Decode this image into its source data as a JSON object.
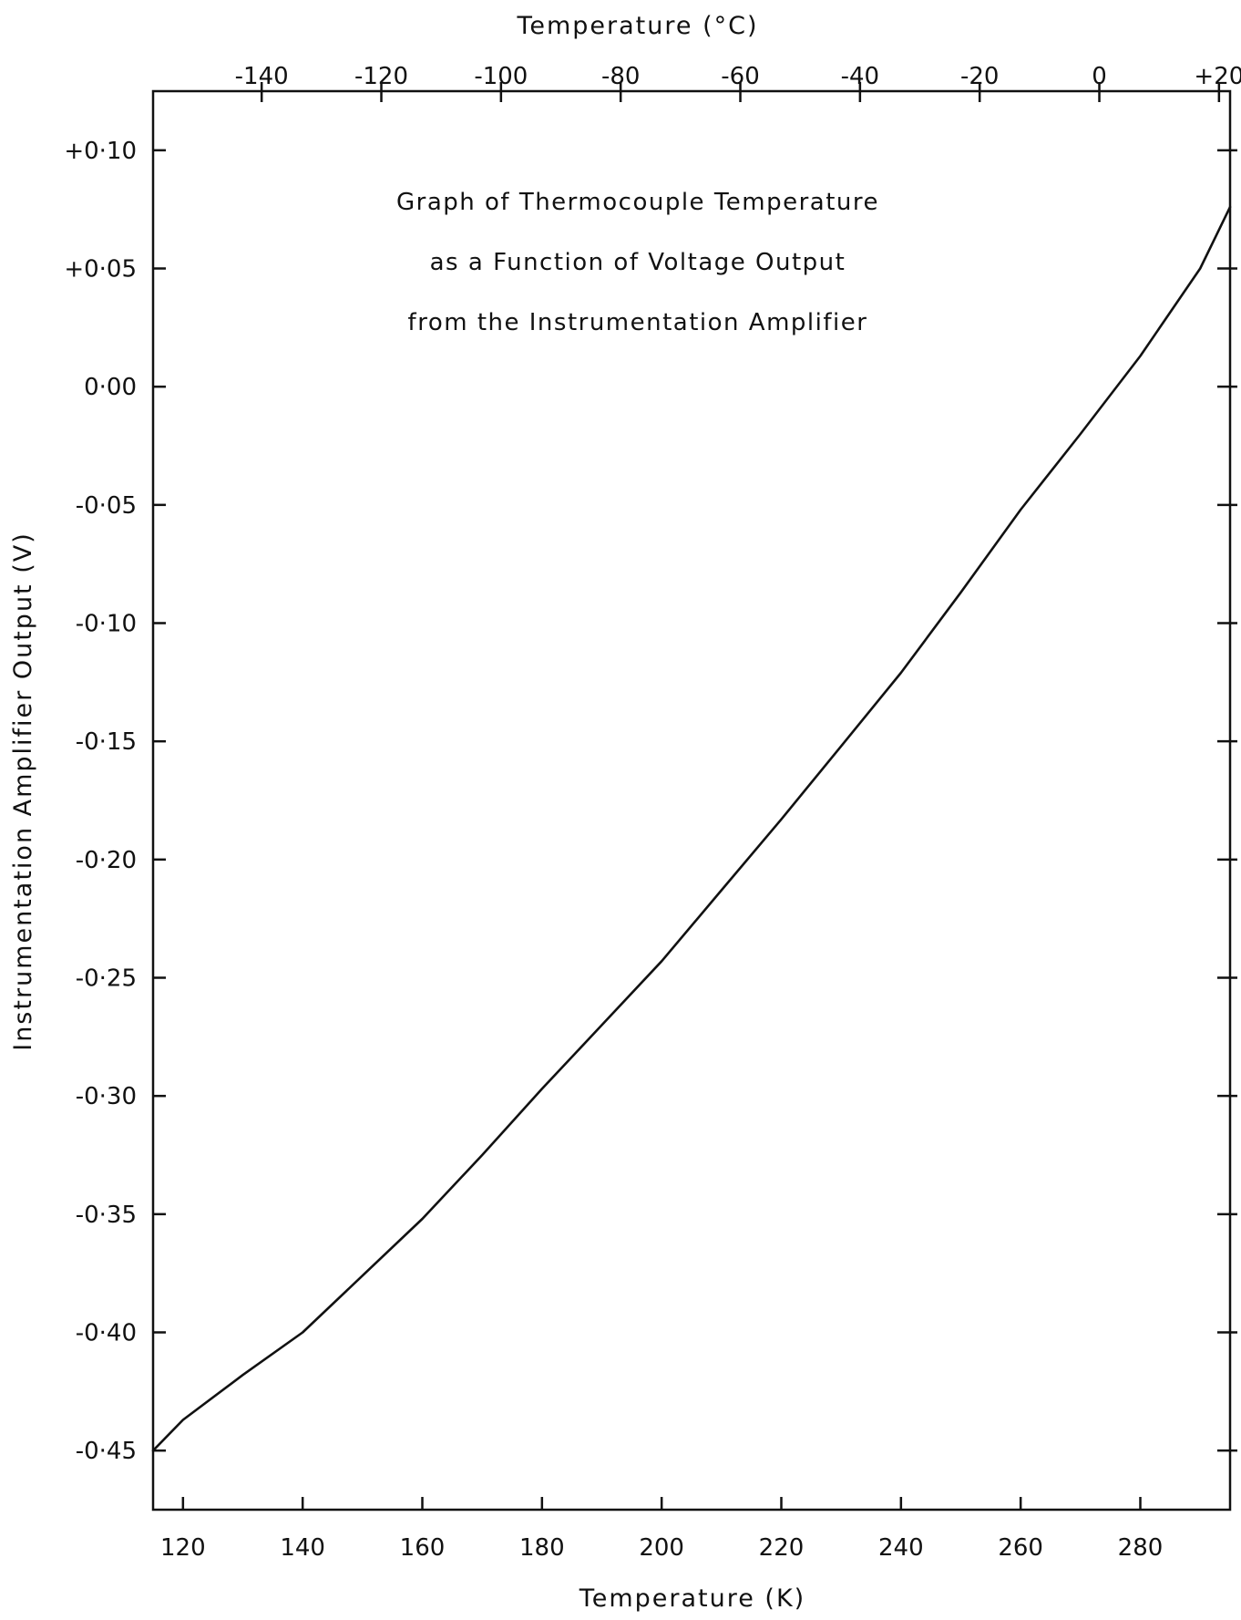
{
  "chart_data": {
    "type": "line",
    "title_lines": [
      "Graph of Thermocouple Temperature",
      "as a Function of Voltage Output",
      "from the Instrumentation Amplifier"
    ],
    "xlabel": "Temperature (K)",
    "x2label": "Temperature (°C)",
    "ylabel": "Instrumentation Amplifier Output (V)",
    "xlim": [
      115,
      295
    ],
    "ylim": [
      -0.475,
      0.125
    ],
    "x_ticks": [
      120,
      140,
      160,
      180,
      200,
      220,
      240,
      260,
      280
    ],
    "x_tick_labels": [
      "120",
      "140",
      "160",
      "180",
      "200",
      "220",
      "240",
      "260",
      "280"
    ],
    "x2_ticks_celsius": [
      -140,
      -120,
      -100,
      -80,
      -60,
      -40,
      -20,
      0,
      20
    ],
    "x2_tick_labels": [
      "-140",
      "-120",
      "-100",
      "-80",
      "-60",
      "-40",
      "-20",
      "0",
      "+20"
    ],
    "y_ticks": [
      0.1,
      0.05,
      0.0,
      -0.05,
      -0.1,
      -0.15,
      -0.2,
      -0.25,
      -0.3,
      -0.35,
      -0.4,
      -0.45
    ],
    "y_tick_labels": [
      "+0·10",
      "+0·05",
      "0·00",
      "-0·05",
      "-0·10",
      "-0·15",
      "-0·20",
      "-0·25",
      "-0·30",
      "-0·35",
      "-0·40",
      "-0·45"
    ],
    "grid": false,
    "series": [
      {
        "x": [
          115,
          120,
          130,
          140,
          150,
          160,
          170,
          180,
          190,
          200,
          210,
          220,
          230,
          240,
          250,
          260,
          270,
          280,
          290,
          295
        ],
        "y": [
          -0.45,
          -0.437,
          -0.418,
          -0.4,
          -0.376,
          -0.352,
          -0.325,
          -0.297,
          -0.27,
          -0.243,
          -0.213,
          -0.183,
          -0.152,
          -0.121,
          -0.087,
          -0.052,
          -0.02,
          0.013,
          0.05,
          0.076
        ]
      }
    ]
  }
}
